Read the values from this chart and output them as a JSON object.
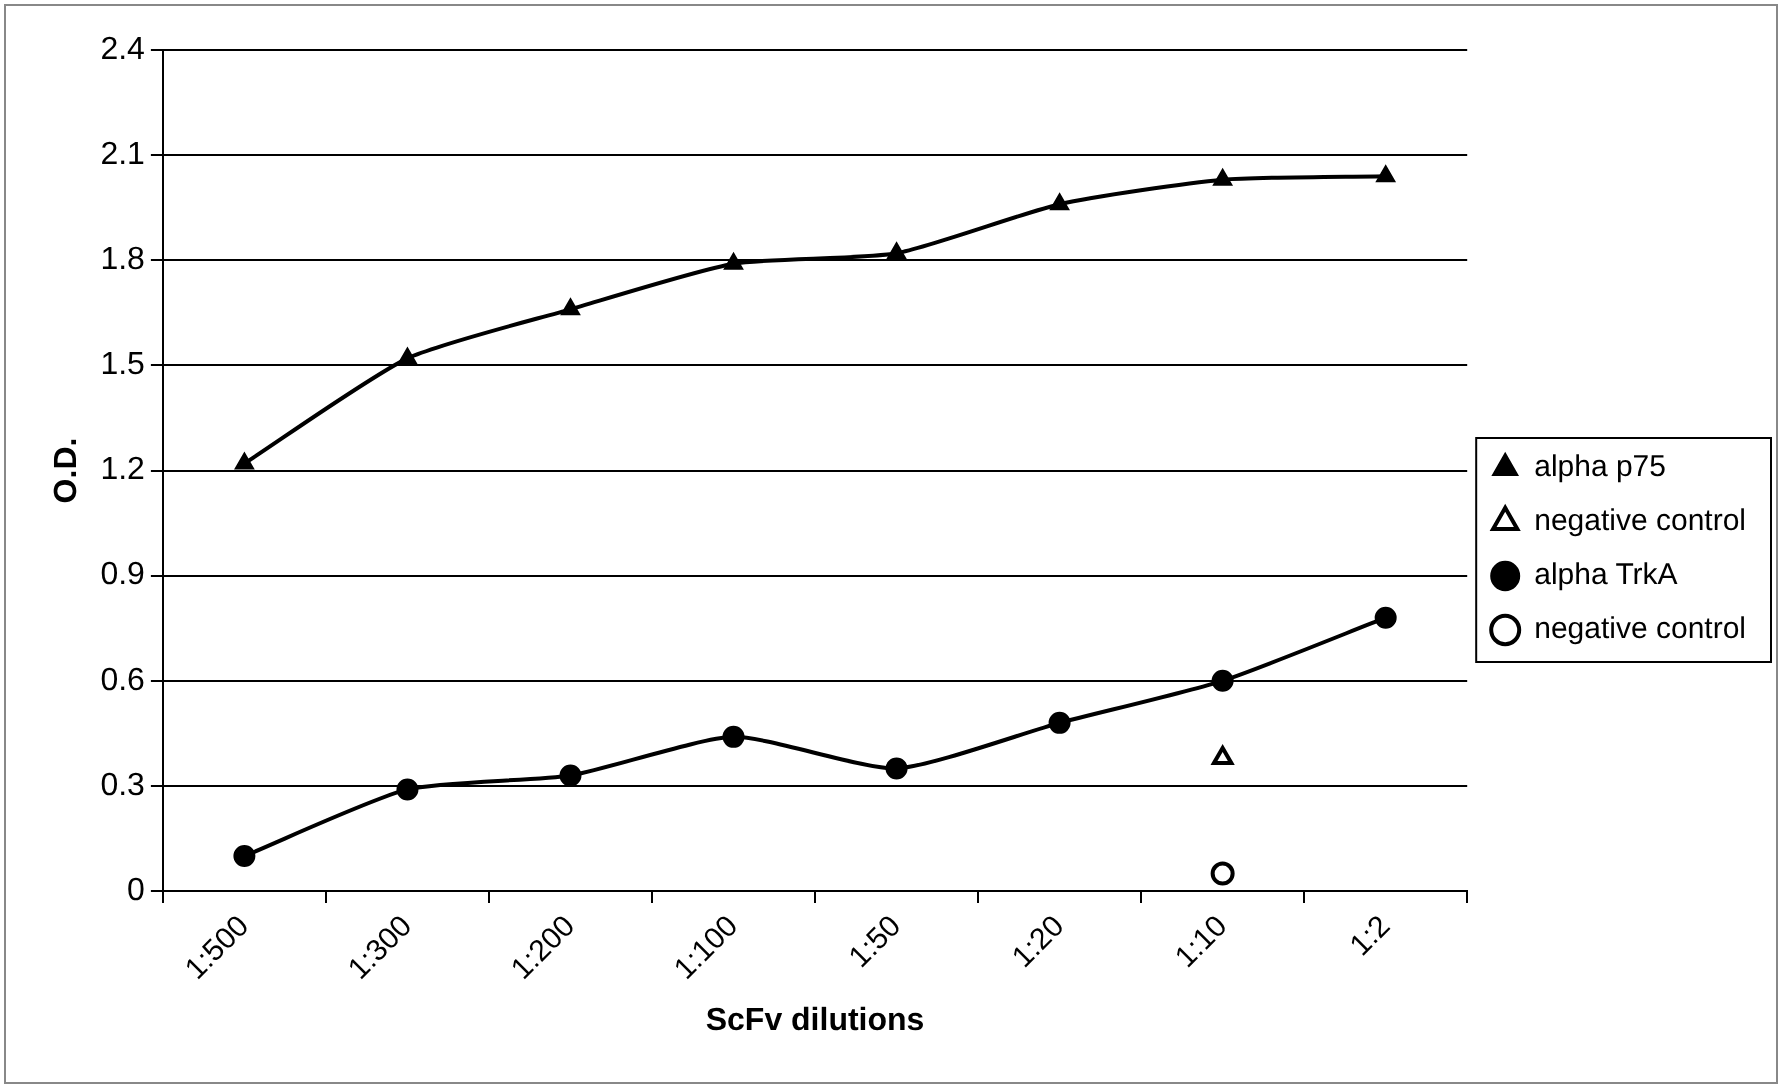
{
  "chart_data": {
    "type": "line",
    "xlabel": "ScFv dilutions",
    "ylabel": "O.D.",
    "categories": [
      "1:500",
      "1:300",
      "1:200",
      "1:100",
      "1:50",
      "1:20",
      "1:10",
      "1:2"
    ],
    "ylim": [
      0,
      2.4
    ],
    "yticks": [
      0,
      0.3,
      0.6,
      0.9,
      1.2,
      1.5,
      1.8,
      2.1,
      2.4
    ],
    "grid": "y",
    "legend": "right",
    "line_style": "solid",
    "series": [
      {
        "name": "alpha p75",
        "color": "#000000",
        "marker": "triangle",
        "values": [
          1.22,
          1.52,
          1.66,
          1.79,
          1.82,
          1.96,
          2.03,
          2.04
        ]
      },
      {
        "name": "negative control",
        "type": "scatter",
        "color": "#000000",
        "marker": "triangle",
        "values": [
          null,
          null,
          null,
          null,
          null,
          null,
          0.38,
          null
        ]
      },
      {
        "name": "alpha TrkA",
        "color": "#000000",
        "marker": "circle",
        "values": [
          0.1,
          0.29,
          0.33,
          0.44,
          0.35,
          0.48,
          0.6,
          0.78
        ]
      },
      {
        "name": "negative control",
        "type": "scatter",
        "color": "#000000",
        "marker": "circle",
        "values": [
          null,
          null,
          null,
          null,
          null,
          null,
          0.05,
          null
        ]
      }
    ]
  }
}
